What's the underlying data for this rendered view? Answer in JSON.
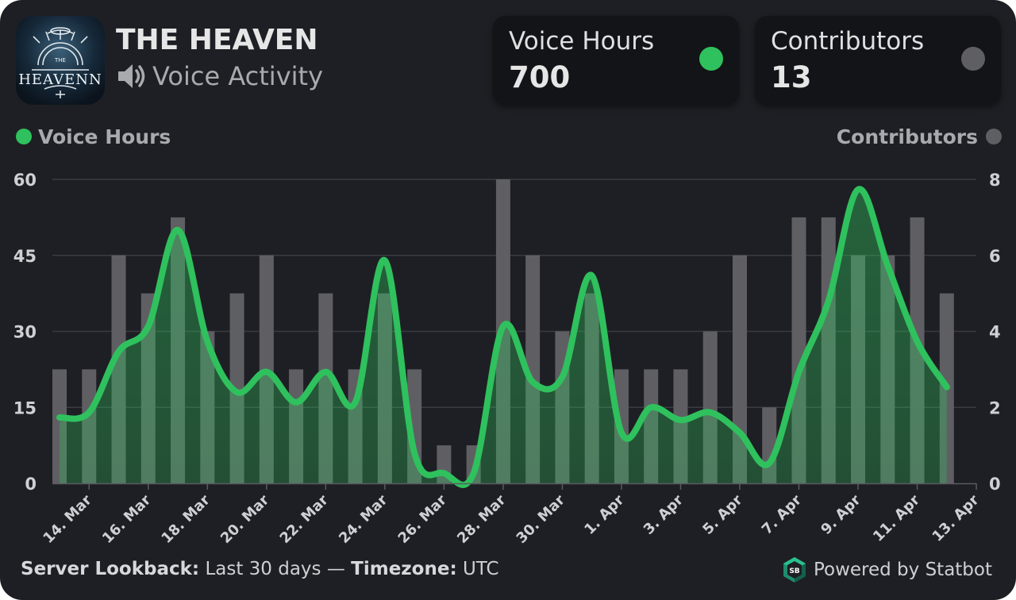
{
  "header": {
    "server_name": "THE HEAVEN",
    "subtitle": "Voice Activity",
    "logo_icon": "the-heaven-server-logo",
    "subtitle_icon": "speaker-icon"
  },
  "stats": [
    {
      "label": "Voice Hours",
      "value": "700",
      "color": "#2fc15d"
    },
    {
      "label": "Contributors",
      "value": "13",
      "color": "#5f5f63"
    }
  ],
  "footer": {
    "lookback_label": "Server Lookback:",
    "lookback_value": "Last 30 days",
    "separator": "—",
    "timezone_label": "Timezone:",
    "timezone_value": "UTC",
    "powered_by": "Powered by Statbot",
    "powered_icon": "statbot-logo-icon"
  },
  "chart_data": {
    "type": "bar+line",
    "legend": {
      "left": "Voice Hours",
      "right": "Contributors"
    },
    "y_left": {
      "label": "Voice Hours",
      "range": [
        0,
        60
      ],
      "ticks": [
        "0",
        "15",
        "30",
        "45",
        "60"
      ]
    },
    "y_right": {
      "label": "Contributors",
      "range": [
        0,
        8
      ],
      "ticks": [
        "0",
        "2",
        "4",
        "6",
        "8"
      ]
    },
    "x_tick_labels": [
      "14. Mar",
      "16. Mar",
      "18. Mar",
      "20. Mar",
      "22. Mar",
      "24. Mar",
      "26. Mar",
      "28. Mar",
      "30. Mar",
      "1. Apr",
      "3. Apr",
      "5. Apr",
      "7. Apr",
      "9. Apr",
      "11. Apr",
      "13. Apr"
    ],
    "dates": [
      "13. Mar",
      "14. Mar",
      "15. Mar",
      "16. Mar",
      "17. Mar",
      "18. Mar",
      "19. Mar",
      "20. Mar",
      "21. Mar",
      "22. Mar",
      "23. Mar",
      "24. Mar",
      "25. Mar",
      "26. Mar",
      "27. Mar",
      "28. Mar",
      "29. Mar",
      "30. Mar",
      "31. Mar",
      "1. Apr",
      "2. Apr",
      "3. Apr",
      "4. Apr",
      "5. Apr",
      "6. Apr",
      "7. Apr",
      "8. Apr",
      "9. Apr",
      "10. Apr",
      "11. Apr",
      "12. Apr"
    ],
    "series": [
      {
        "name": "Voice Hours",
        "axis": "left",
        "type": "area-spline",
        "color": "#2fc15d",
        "values": [
          13,
          14,
          26,
          31,
          50,
          28,
          18,
          22,
          16,
          22,
          16,
          44,
          6,
          2,
          2,
          31,
          20,
          21,
          41,
          10,
          15,
          12.5,
          14,
          10,
          4,
          22,
          36,
          58,
          43,
          28,
          19
        ]
      },
      {
        "name": "Contributors",
        "axis": "right",
        "type": "column",
        "color": "#5f5f63",
        "values": [
          3,
          3,
          6,
          5,
          7,
          4,
          5,
          6,
          3,
          5,
          3,
          5,
          3,
          1,
          1,
          8,
          6,
          4,
          5,
          3,
          3,
          3,
          4,
          6,
          2,
          7,
          7,
          6,
          6,
          7,
          5
        ]
      }
    ],
    "grid": true
  }
}
